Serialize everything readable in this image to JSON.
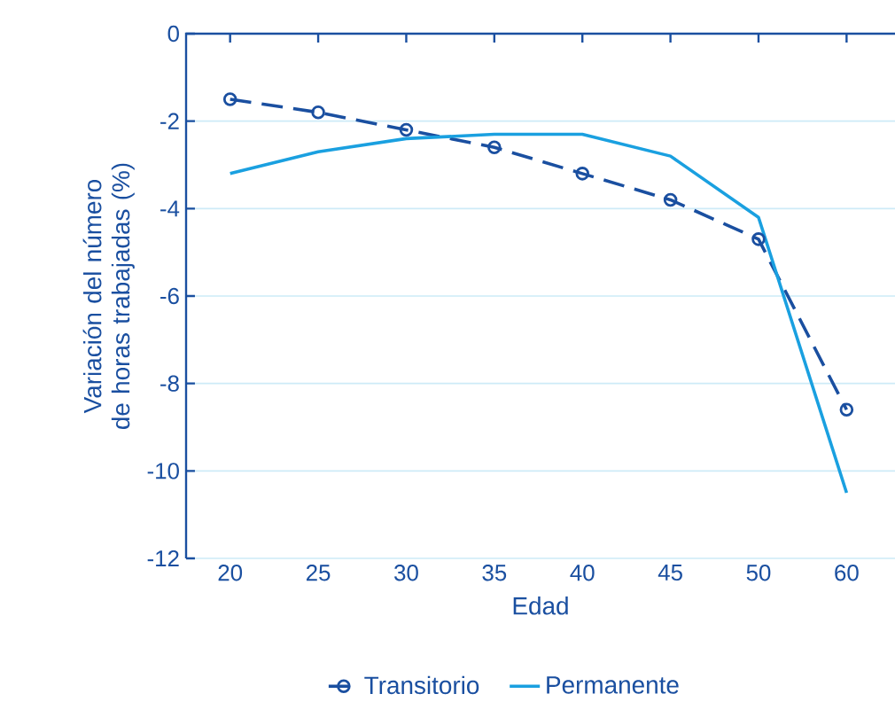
{
  "chart_data": {
    "type": "line",
    "xlabel": "Edad",
    "ylabel": "Variación del número de horas trabajadas (%)",
    "categories": [
      "20",
      "25",
      "30",
      "35",
      "40",
      "45",
      "50",
      "60"
    ],
    "series": [
      {
        "name": "Transitorio",
        "color": "#1a4fa0",
        "line_style": "dashed",
        "marker": "circle",
        "values": [
          -1.5,
          -1.8,
          -2.2,
          -2.6,
          -3.2,
          -3.8,
          -4.7,
          -8.6
        ]
      },
      {
        "name": "Permanente",
        "color": "#1aa0e0",
        "line_style": "solid",
        "marker": "none",
        "values": [
          -3.2,
          -2.7,
          -2.4,
          -2.3,
          -2.3,
          -2.8,
          -4.2,
          -10.5
        ]
      }
    ],
    "ylim": [
      -12,
      0
    ],
    "yticks": [
      -12,
      -10,
      -8,
      -6,
      -4,
      -2,
      0
    ],
    "grid": "y",
    "legend": "bottom"
  }
}
